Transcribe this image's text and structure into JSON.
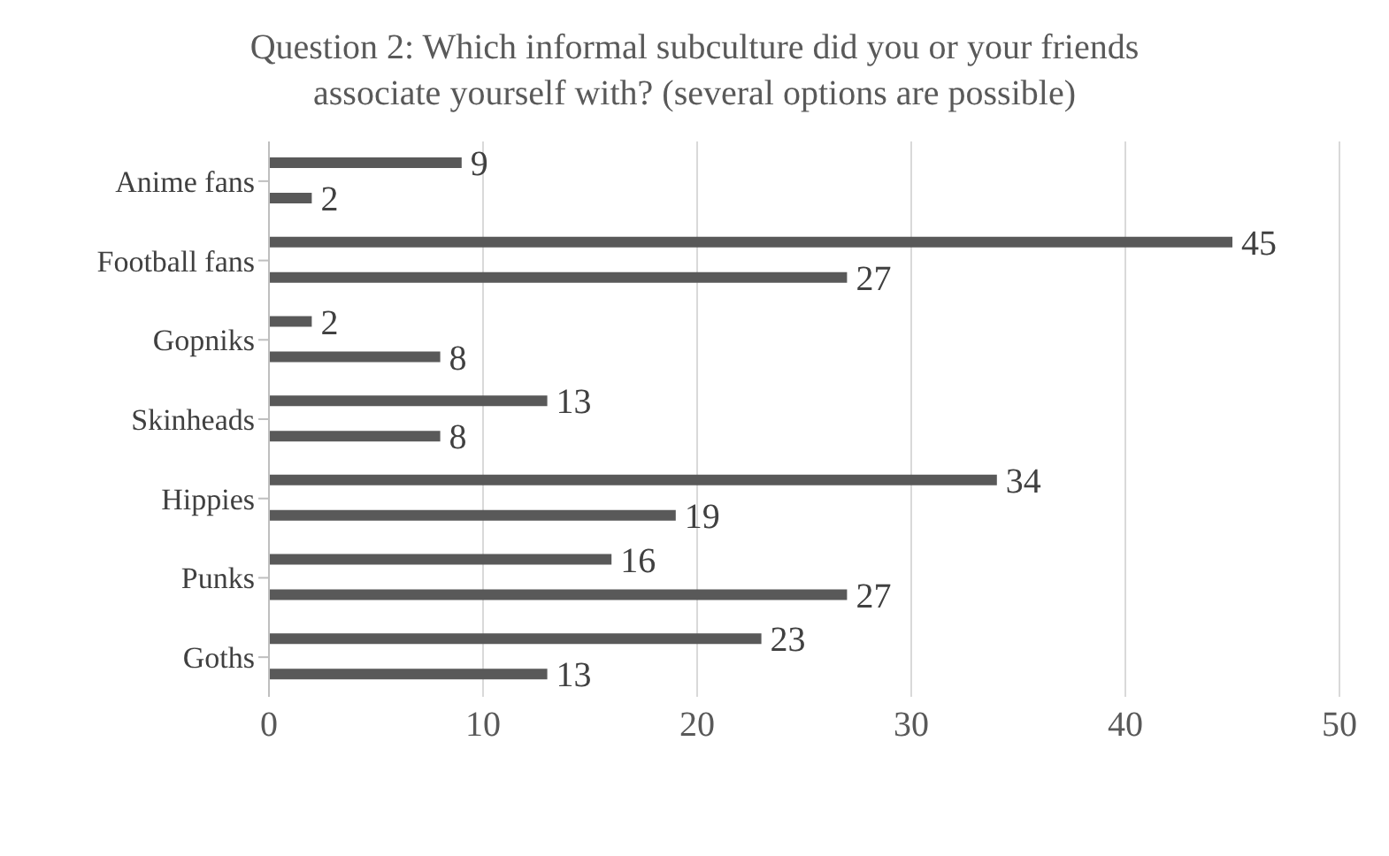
{
  "chart_data": {
    "type": "bar",
    "orientation": "horizontal",
    "title": "Question 2: Which informal subculture did you or your friends associate yourself with? (several options are possible)",
    "categories": [
      "Anime fans",
      "Football fans",
      "Gopniks",
      "Skinheads",
      "Hippies",
      "Punks",
      "Goths"
    ],
    "series": [
      {
        "color": "#595959",
        "values": [
          9,
          45,
          2,
          13,
          34,
          16,
          23
        ]
      },
      {
        "color": "#595959",
        "values": [
          2,
          27,
          8,
          8,
          19,
          27,
          13
        ]
      }
    ],
    "xlim": [
      0,
      50
    ],
    "xticks": [
      0,
      10,
      20,
      30,
      40,
      50
    ],
    "grid": "x",
    "data_labels": true,
    "legend": false
  }
}
